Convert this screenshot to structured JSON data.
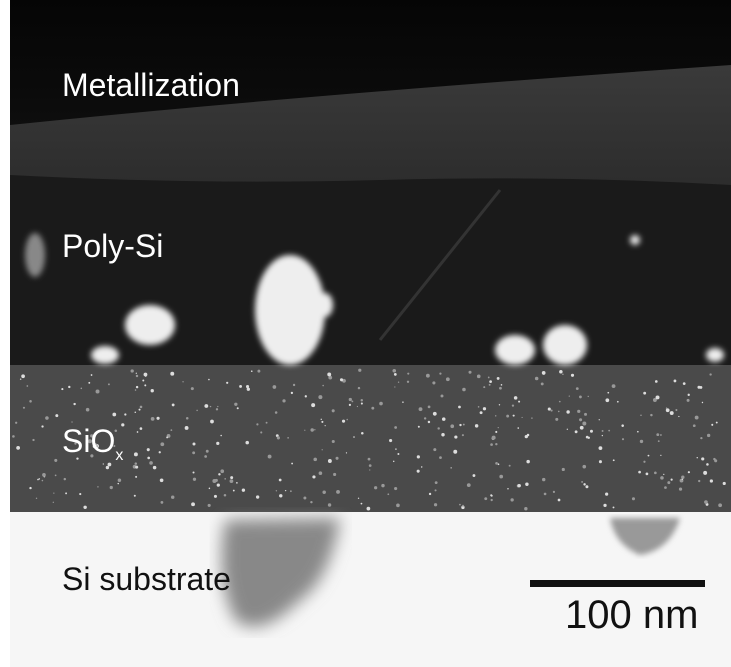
{
  "labels": {
    "metallization": "Metallization",
    "poly_si": "Poly-Si",
    "siox": "SiO",
    "siox_subscript": "x",
    "substrate": "Si substrate"
  },
  "scale_bar": {
    "label": "100 nm"
  }
}
